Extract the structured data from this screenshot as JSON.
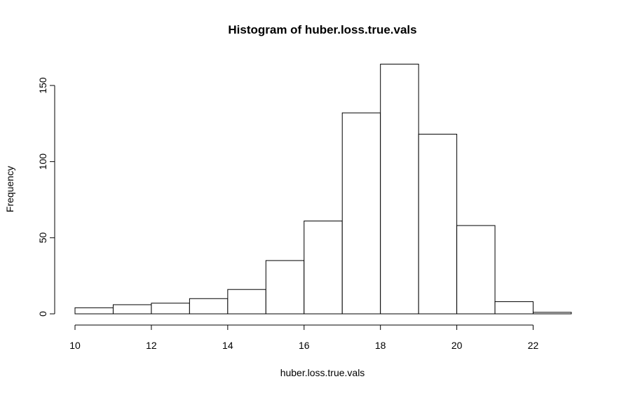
{
  "chart_data": {
    "type": "bar",
    "title": "Histogram of huber.loss.true.vals",
    "xlabel": "huber.loss.true.vals",
    "ylabel": "Frequency",
    "bins": [
      {
        "x0": 10,
        "x1": 11,
        "count": 4
      },
      {
        "x0": 11,
        "x1": 12,
        "count": 6
      },
      {
        "x0": 12,
        "x1": 13,
        "count": 7
      },
      {
        "x0": 13,
        "x1": 14,
        "count": 10
      },
      {
        "x0": 14,
        "x1": 15,
        "count": 16
      },
      {
        "x0": 15,
        "x1": 16,
        "count": 35
      },
      {
        "x0": 16,
        "x1": 17,
        "count": 61
      },
      {
        "x0": 17,
        "x1": 18,
        "count": 132
      },
      {
        "x0": 18,
        "x1": 19,
        "count": 164
      },
      {
        "x0": 19,
        "x1": 20,
        "count": 118
      },
      {
        "x0": 20,
        "x1": 21,
        "count": 58
      },
      {
        "x0": 21,
        "x1": 22,
        "count": 8
      },
      {
        "x0": 22,
        "x1": 23,
        "count": 1
      }
    ],
    "xlim": [
      10,
      23
    ],
    "ylim": [
      0,
      164
    ],
    "x_ticks": [
      10,
      12,
      14,
      16,
      18,
      20,
      22
    ],
    "y_ticks": [
      0,
      50,
      100,
      150
    ],
    "grid": false,
    "legend": "none"
  }
}
